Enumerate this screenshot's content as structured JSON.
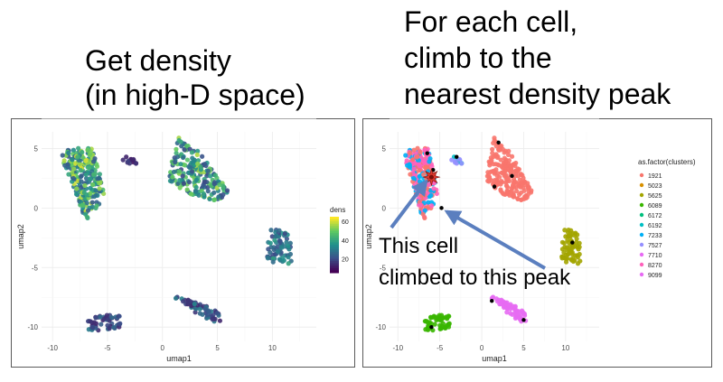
{
  "headings": {
    "left": [
      "Get density",
      "(in high-D space)"
    ],
    "right": [
      "For each cell,",
      "climb to the",
      "nearest density peak"
    ]
  },
  "annotations": {
    "this_cell": "This cell",
    "climbed": "climbed to this peak"
  },
  "arrow_color": "#5b7fbf",
  "star_color": "#e03a2f",
  "chart_data": [
    {
      "type": "scatter",
      "title": "",
      "xlabel": "umap1",
      "ylabel": "umap2",
      "xlim": [
        -11,
        14
      ],
      "ylim": [
        -11.2,
        6.4
      ],
      "xticks": [
        -10,
        -5,
        0,
        5,
        10
      ],
      "yticks": [
        -10,
        -5,
        0,
        5
      ],
      "grid": true,
      "color_by": "dens",
      "colorbar": {
        "title": "dens",
        "ticks": [
          20,
          40,
          60
        ],
        "range": [
          5,
          65
        ]
      },
      "groups": [
        {
          "name": "",
          "center": [
            -7.2,
            1.5
          ],
          "n": 240,
          "dens": 42
        },
        {
          "name": "",
          "center": [
            2.8,
            3.4
          ],
          "n": 200,
          "dens": 38
        },
        {
          "name": "",
          "center": [
            10.5,
            -3.2
          ],
          "n": 70,
          "dens": 32
        },
        {
          "name": "",
          "center": [
            4.0,
            -8.8
          ],
          "n": 60,
          "dens": 26
        },
        {
          "name": "",
          "center": [
            -4.8,
            -9.7
          ],
          "n": 55,
          "dens": 24
        },
        {
          "name": "",
          "center": [
            -3.2,
            4.0
          ],
          "n": 12,
          "dens": 15
        }
      ]
    },
    {
      "type": "scatter",
      "title": "",
      "xlabel": "umap1",
      "ylabel": "umap2",
      "xlim": [
        -11,
        14
      ],
      "ylim": [
        -11.2,
        6.4
      ],
      "xticks": [
        -10,
        -5,
        0,
        5,
        10
      ],
      "yticks": [
        -10,
        -5,
        0,
        5
      ],
      "grid": true,
      "legend_title": "as.factor(clusters)",
      "legend_position": "right",
      "series": [
        {
          "name": "1921",
          "color": "#f8766d"
        },
        {
          "name": "5023",
          "color": "#d89000"
        },
        {
          "name": "5625",
          "color": "#a3a500"
        },
        {
          "name": "6089",
          "color": "#39b600"
        },
        {
          "name": "6172",
          "color": "#00bf7d"
        },
        {
          "name": "6192",
          "color": "#00bfc4"
        },
        {
          "name": "7233",
          "color": "#00b0f6"
        },
        {
          "name": "7527",
          "color": "#9590ff"
        },
        {
          "name": "7710",
          "color": "#e76bf3"
        },
        {
          "name": "8270",
          "color": "#ff62bc"
        },
        {
          "name": "9099",
          "color": "#e76bf3"
        }
      ],
      "peaks": [
        [
          -6.5,
          4.6
        ],
        [
          -5.8,
          3.2
        ],
        [
          -4.8,
          0.0
        ],
        [
          2.0,
          5.5
        ],
        [
          3.6,
          2.7
        ],
        [
          1.5,
          1.8
        ],
        [
          10.8,
          -2.9
        ],
        [
          5.0,
          -9.4
        ],
        [
          -6.0,
          -10.0
        ],
        [
          1.2,
          -7.8
        ],
        [
          -3.0,
          4.3
        ]
      ],
      "highlighted_cell": [
        -6.0,
        2.6
      ],
      "highlighted_peak": [
        -4.8,
        0.0
      ]
    }
  ]
}
